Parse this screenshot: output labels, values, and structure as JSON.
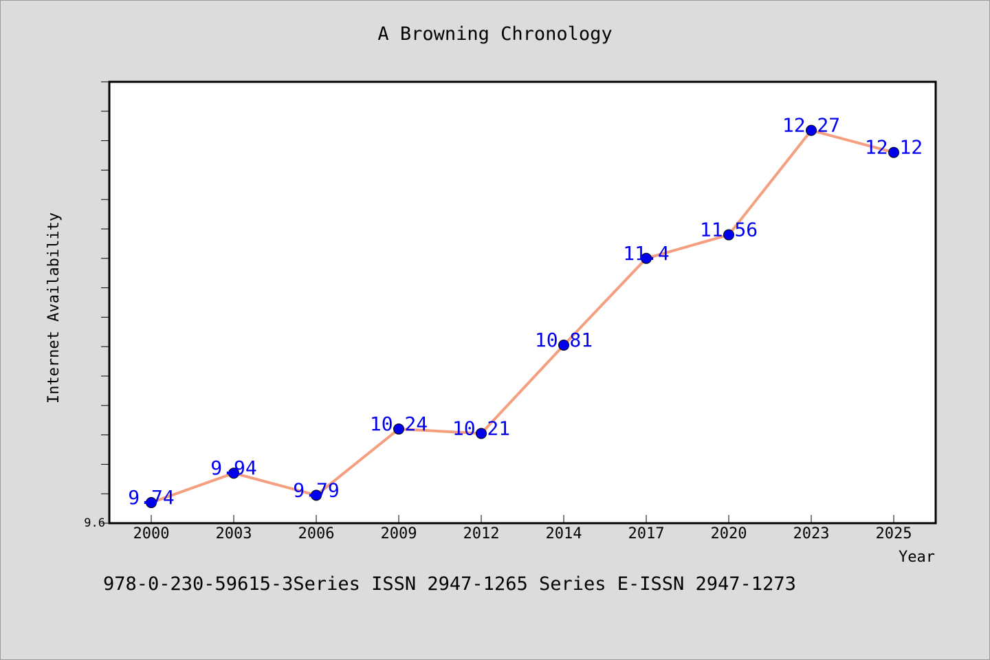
{
  "chart_data": {
    "type": "line",
    "title": "A Browning Chronology",
    "xlabel": "Year",
    "ylabel": "Internet Availability",
    "categories": [
      "2000",
      "2003",
      "2006",
      "2009",
      "2012",
      "2014",
      "2017",
      "2020",
      "2023",
      "2025"
    ],
    "series": [
      {
        "values": [
          9.74,
          9.94,
          9.79,
          10.24,
          10.21,
          10.81,
          11.4,
          11.56,
          12.27,
          12.12
        ],
        "labels": [
          "9.74",
          "9.94",
          "9.79",
          "10.24",
          "10.21",
          "10.81",
          "11.4",
          "11.56",
          "12.27",
          "12.12"
        ],
        "line_color": "#f4a080",
        "marker_color": "#0000ee",
        "label_color": "#0000ee"
      }
    ],
    "ylim": [
      9.6,
      12.6
    ],
    "y_tick_labels": [
      "9.6"
    ],
    "grid": false,
    "legend": "none"
  },
  "footer": "978-0-230-59615-3Series ISSN 2947-1265 Series E-ISSN 2947-1273"
}
